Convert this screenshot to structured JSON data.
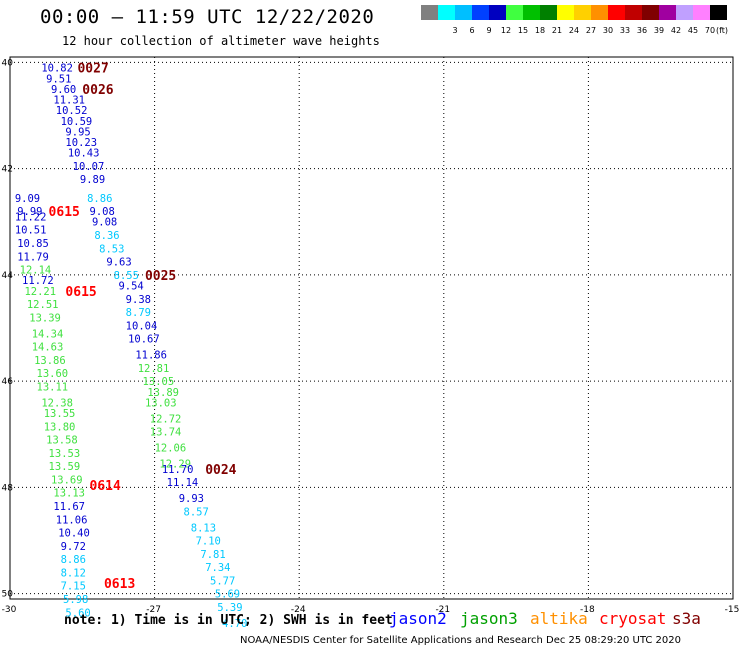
{
  "title": "00:00 – 11:59 UTC 12/22/2020",
  "subtitle": "12 hour collection of altimeter wave heights",
  "legend": {
    "unit_label": "(ft)",
    "bins": [
      {
        "label": "",
        "color": "#808080"
      },
      {
        "label": "3",
        "color": "#00ffff"
      },
      {
        "label": "6",
        "color": "#00bfff"
      },
      {
        "label": "9",
        "color": "#0040ff"
      },
      {
        "label": "12",
        "color": "#0000c0"
      },
      {
        "label": "15",
        "color": "#40ff40"
      },
      {
        "label": "18",
        "color": "#00c000"
      },
      {
        "label": "21",
        "color": "#008000"
      },
      {
        "label": "24",
        "color": "#ffff00"
      },
      {
        "label": "27",
        "color": "#ffd000"
      },
      {
        "label": "30",
        "color": "#ff9000"
      },
      {
        "label": "33",
        "color": "#ff0000"
      },
      {
        "label": "36",
        "color": "#c00000"
      },
      {
        "label": "39",
        "color": "#800000"
      },
      {
        "label": "42",
        "color": "#a000a0"
      },
      {
        "label": "45",
        "color": "#c0a0ff"
      },
      {
        "label": "70",
        "color": "#ff80ff"
      },
      {
        "label": "",
        "color": "#000000"
      }
    ]
  },
  "map": {
    "lon_ticks": [
      "-30",
      "-27",
      "-24",
      "-21",
      "-18",
      "-15"
    ],
    "lat_ticks": [
      "40",
      "42",
      "44",
      "46",
      "48",
      "50"
    ],
    "grid": "dotted",
    "lon_range": [
      -30,
      -15
    ],
    "lat_range": [
      39.9,
      50.1
    ]
  },
  "colors": {
    "lightblue": "#00c8ff",
    "green": "#40e040",
    "blue": "#0000d0",
    "time_red": "#ff0000",
    "time_darkred": "#800000"
  },
  "time_markers": [
    {
      "text": "0027",
      "lon": -28.6,
      "lat": 40.1,
      "color": "darkred"
    },
    {
      "text": "0026",
      "lon": -28.5,
      "lat": 40.5,
      "color": "darkred"
    },
    {
      "text": "0615",
      "lon": -29.2,
      "lat": 42.8,
      "color": "red"
    },
    {
      "text": "0025",
      "lon": -27.2,
      "lat": 44.0,
      "color": "darkred"
    },
    {
      "text": "0615",
      "lon": -28.85,
      "lat": 44.3,
      "color": "red"
    },
    {
      "text": "0024",
      "lon": -25.95,
      "lat": 47.65,
      "color": "darkred"
    },
    {
      "text": "0614",
      "lon": -28.35,
      "lat": 47.95,
      "color": "red"
    },
    {
      "text": "0613",
      "lon": -28.05,
      "lat": 49.8,
      "color": "red"
    }
  ],
  "wave_heights": [
    {
      "v": "10.82",
      "lon": -29.35,
      "lat": 40.1,
      "c": "blue"
    },
    {
      "v": "9.51",
      "lon": -29.25,
      "lat": 40.3,
      "c": "blue"
    },
    {
      "v": "9.60",
      "lon": -29.15,
      "lat": 40.5,
      "c": "blue"
    },
    {
      "v": "11.31",
      "lon": -29.1,
      "lat": 40.7,
      "c": "blue"
    },
    {
      "v": "10.52",
      "lon": -29.05,
      "lat": 40.9,
      "c": "blue"
    },
    {
      "v": "10.59",
      "lon": -28.95,
      "lat": 41.1,
      "c": "blue"
    },
    {
      "v": "9.95",
      "lon": -28.85,
      "lat": 41.3,
      "c": "blue"
    },
    {
      "v": "10.23",
      "lon": -28.85,
      "lat": 41.5,
      "c": "blue"
    },
    {
      "v": "10.43",
      "lon": -28.8,
      "lat": 41.7,
      "c": "blue"
    },
    {
      "v": "10.07",
      "lon": -28.7,
      "lat": 41.95,
      "c": "blue"
    },
    {
      "v": "9.89",
      "lon": -28.55,
      "lat": 42.2,
      "c": "blue"
    },
    {
      "v": "8.86",
      "lon": -28.4,
      "lat": 42.55,
      "c": "lightblue"
    },
    {
      "v": "9.08",
      "lon": -28.35,
      "lat": 42.8,
      "c": "blue"
    },
    {
      "v": "9.08",
      "lon": -28.3,
      "lat": 43.0,
      "c": "blue"
    },
    {
      "v": "8.36",
      "lon": -28.25,
      "lat": 43.25,
      "c": "lightblue"
    },
    {
      "v": "8.53",
      "lon": -28.15,
      "lat": 43.5,
      "c": "lightblue"
    },
    {
      "v": "9.63",
      "lon": -28.0,
      "lat": 43.75,
      "c": "blue"
    },
    {
      "v": "8.55",
      "lon": -27.85,
      "lat": 44.0,
      "c": "lightblue"
    },
    {
      "v": "9.54",
      "lon": -27.75,
      "lat": 44.2,
      "c": "blue"
    },
    {
      "v": "9.38",
      "lon": -27.6,
      "lat": 44.45,
      "c": "blue"
    },
    {
      "v": "8.79",
      "lon": -27.6,
      "lat": 44.7,
      "c": "lightblue"
    },
    {
      "v": "10.04",
      "lon": -27.6,
      "lat": 44.95,
      "c": "blue"
    },
    {
      "v": "10.67",
      "lon": -27.55,
      "lat": 45.2,
      "c": "blue"
    },
    {
      "v": "11.86",
      "lon": -27.4,
      "lat": 45.5,
      "c": "blue"
    },
    {
      "v": "12.81",
      "lon": -27.35,
      "lat": 45.75,
      "c": "green"
    },
    {
      "v": "13.05",
      "lon": -27.25,
      "lat": 46.0,
      "c": "green"
    },
    {
      "v": "13.89",
      "lon": -27.15,
      "lat": 46.2,
      "c": "green"
    },
    {
      "v": "13.03",
      "lon": -27.2,
      "lat": 46.4,
      "c": "green"
    },
    {
      "v": "12.72",
      "lon": -27.1,
      "lat": 46.7,
      "c": "green"
    },
    {
      "v": "13.74",
      "lon": -27.1,
      "lat": 46.95,
      "c": "green"
    },
    {
      "v": "12.06",
      "lon": -27.0,
      "lat": 47.25,
      "c": "green"
    },
    {
      "v": "12.29",
      "lon": -26.9,
      "lat": 47.55,
      "c": "green"
    },
    {
      "v": "11.70",
      "lon": -26.85,
      "lat": 47.65,
      "c": "blue"
    },
    {
      "v": "11.14",
      "lon": -26.75,
      "lat": 47.9,
      "c": "blue"
    },
    {
      "v": "9.93",
      "lon": -26.5,
      "lat": 48.2,
      "c": "blue"
    },
    {
      "v": "8.57",
      "lon": -26.4,
      "lat": 48.45,
      "c": "lightblue"
    },
    {
      "v": "8.13",
      "lon": -26.25,
      "lat": 48.75,
      "c": "lightblue"
    },
    {
      "v": "7.10",
      "lon": -26.15,
      "lat": 49.0,
      "c": "lightblue"
    },
    {
      "v": "7.81",
      "lon": -26.05,
      "lat": 49.25,
      "c": "lightblue"
    },
    {
      "v": "7.34",
      "lon": -25.95,
      "lat": 49.5,
      "c": "lightblue"
    },
    {
      "v": "5.77",
      "lon": -25.85,
      "lat": 49.75,
      "c": "lightblue"
    },
    {
      "v": "5.69",
      "lon": -25.75,
      "lat": 50.0,
      "c": "lightblue"
    },
    {
      "v": "5.39",
      "lon": -25.7,
      "lat": 50.25,
      "c": "lightblue"
    },
    {
      "v": "4.70",
      "lon": -25.6,
      "lat": 50.55,
      "c": "lightblue"
    },
    {
      "v": "9.09",
      "lon": -29.9,
      "lat": 42.55,
      "c": "blue"
    },
    {
      "v": "9.99",
      "lon": -29.85,
      "lat": 42.8,
      "c": "blue"
    },
    {
      "v": "11.22",
      "lon": -29.9,
      "lat": 42.9,
      "c": "blue"
    },
    {
      "v": "10.51",
      "lon": -29.9,
      "lat": 43.15,
      "c": "blue"
    },
    {
      "v": "10.85",
      "lon": -29.85,
      "lat": 43.4,
      "c": "blue"
    },
    {
      "v": "11.79",
      "lon": -29.85,
      "lat": 43.65,
      "c": "blue"
    },
    {
      "v": "12.14",
      "lon": -29.8,
      "lat": 43.9,
      "c": "green"
    },
    {
      "v": "11.72",
      "lon": -29.75,
      "lat": 44.1,
      "c": "blue"
    },
    {
      "v": "12.21",
      "lon": -29.7,
      "lat": 44.3,
      "c": "green"
    },
    {
      "v": "12.51",
      "lon": -29.65,
      "lat": 44.55,
      "c": "green"
    },
    {
      "v": "13.39",
      "lon": -29.6,
      "lat": 44.8,
      "c": "green"
    },
    {
      "v": "14.34",
      "lon": -29.55,
      "lat": 45.1,
      "c": "green"
    },
    {
      "v": "14.63",
      "lon": -29.55,
      "lat": 45.35,
      "c": "green"
    },
    {
      "v": "13.86",
      "lon": -29.5,
      "lat": 45.6,
      "c": "green"
    },
    {
      "v": "13.60",
      "lon": -29.45,
      "lat": 45.85,
      "c": "green"
    },
    {
      "v": "13.11",
      "lon": -29.45,
      "lat": 46.1,
      "c": "green"
    },
    {
      "v": "12.38",
      "lon": -29.35,
      "lat": 46.4,
      "c": "green"
    },
    {
      "v": "13.55",
      "lon": -29.3,
      "lat": 46.6,
      "c": "green"
    },
    {
      "v": "13.80",
      "lon": -29.3,
      "lat": 46.85,
      "c": "green"
    },
    {
      "v": "13.58",
      "lon": -29.25,
      "lat": 47.1,
      "c": "green"
    },
    {
      "v": "13.53",
      "lon": -29.2,
      "lat": 47.35,
      "c": "green"
    },
    {
      "v": "13.59",
      "lon": -29.2,
      "lat": 47.6,
      "c": "green"
    },
    {
      "v": "13.69",
      "lon": -29.15,
      "lat": 47.85,
      "c": "green"
    },
    {
      "v": "13.13",
      "lon": -29.1,
      "lat": 48.1,
      "c": "green"
    },
    {
      "v": "11.67",
      "lon": -29.1,
      "lat": 48.35,
      "c": "blue"
    },
    {
      "v": "11.06",
      "lon": -29.05,
      "lat": 48.6,
      "c": "blue"
    },
    {
      "v": "10.40",
      "lon": -29.0,
      "lat": 48.85,
      "c": "blue"
    },
    {
      "v": "9.72",
      "lon": -28.95,
      "lat": 49.1,
      "c": "blue"
    },
    {
      "v": "8.86",
      "lon": -28.95,
      "lat": 49.35,
      "c": "lightblue"
    },
    {
      "v": "8.12",
      "lon": -28.95,
      "lat": 49.6,
      "c": "lightblue"
    },
    {
      "v": "7.15",
      "lon": -28.95,
      "lat": 49.85,
      "c": "lightblue"
    },
    {
      "v": "5.98",
      "lon": -28.9,
      "lat": 50.1,
      "c": "lightblue"
    },
    {
      "v": "5.60",
      "lon": -28.85,
      "lat": 50.35,
      "c": "lightblue"
    }
  ],
  "note": "note: 1) Time is in UTC; 2) SWH is in feet",
  "satellites": [
    {
      "name": "jason2",
      "color": "#0000ff"
    },
    {
      "name": "jason3",
      "color": "#00a000"
    },
    {
      "name": "altika",
      "color": "#ff9000"
    },
    {
      "name": "cryosat",
      "color": "#ff0000"
    },
    {
      "name": "s3a",
      "color": "#800000"
    }
  ],
  "credit": "NOAA/NESDIS Center for Satellite Applications and Research    Dec 25 08:29:20 UTC 2020"
}
